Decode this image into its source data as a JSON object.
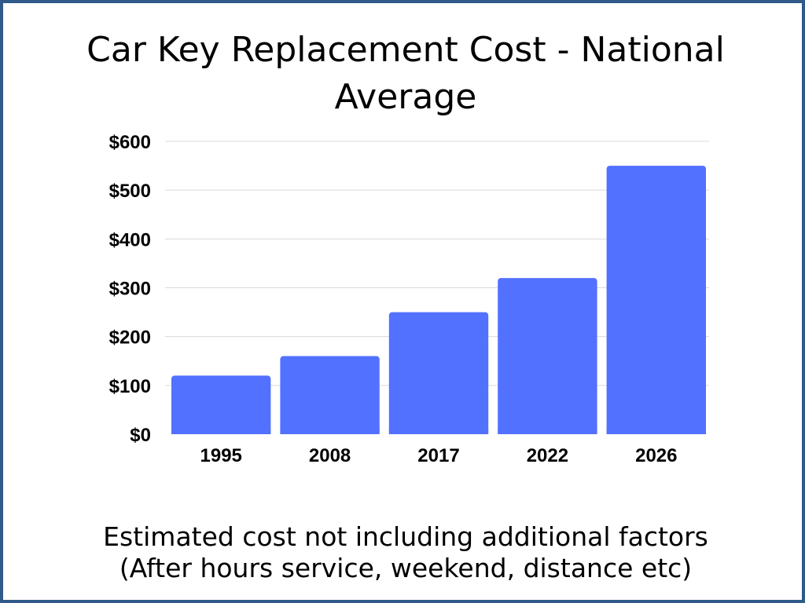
{
  "chart_data": {
    "type": "bar",
    "title": "Car Key Replacement Cost - National Average",
    "categories": [
      "1995",
      "2008",
      "2017",
      "2022",
      "2026"
    ],
    "values": [
      120,
      160,
      250,
      320,
      550
    ],
    "ylim": [
      0,
      600
    ],
    "yticks": [
      0,
      100,
      200,
      300,
      400,
      500,
      600
    ],
    "ytick_labels": [
      "$0",
      "$100",
      "$200",
      "$300",
      "$400",
      "$500",
      "$600"
    ],
    "xlabel": "",
    "ylabel": "",
    "grid": true,
    "bar_color": "#5271ff",
    "grid_color": "#d9d9d9"
  },
  "footnote": {
    "line1": "Estimated cost not including additional factors",
    "line2": "(After hours service, weekend, distance etc)"
  },
  "frame_color": "#2f5a8a"
}
